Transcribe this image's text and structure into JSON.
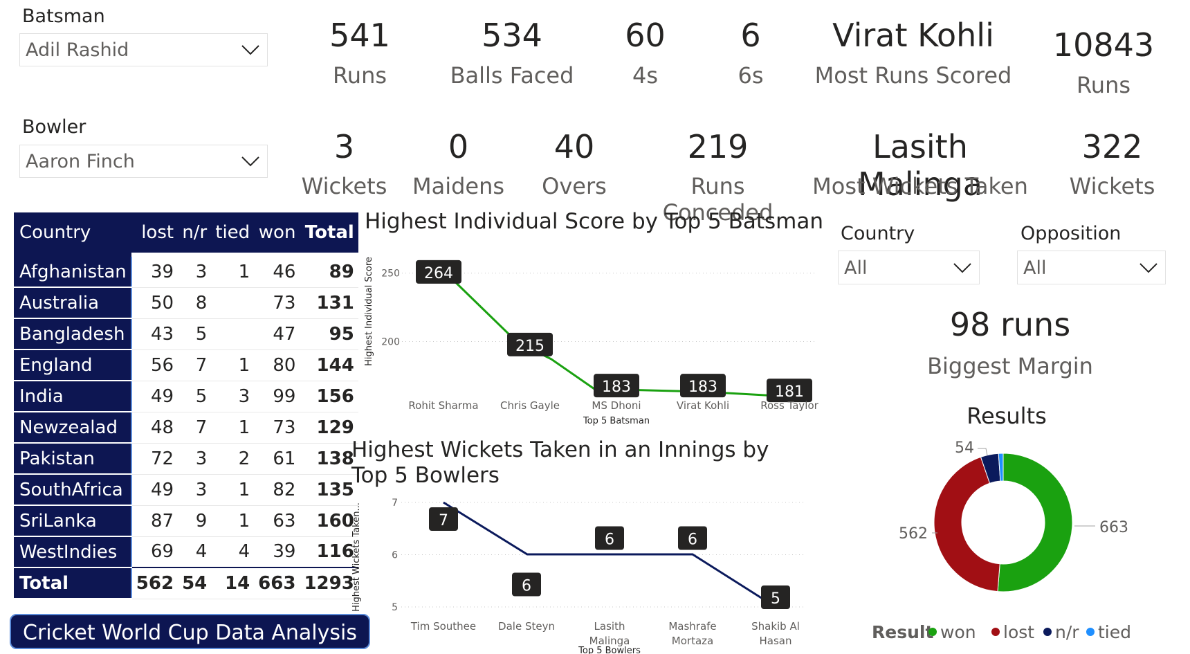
{
  "slicers": {
    "batsman": {
      "label": "Batsman",
      "value": "Adil Rashid"
    },
    "bowler": {
      "label": "Bowler",
      "value": "Aaron Finch"
    },
    "country": {
      "label": "Country",
      "value": "All"
    },
    "opposition": {
      "label": "Opposition",
      "value": "All"
    }
  },
  "batting_kpis": [
    {
      "value": "541",
      "label": "Runs"
    },
    {
      "value": "534",
      "label": "Balls Faced"
    },
    {
      "value": "60",
      "label": "4s"
    },
    {
      "value": "6",
      "label": "6s"
    },
    {
      "value": "Virat Kohli",
      "label": "Most Runs Scored"
    },
    {
      "value": "10843",
      "label": "Runs"
    }
  ],
  "bowling_kpis": [
    {
      "value": "3",
      "label": "Wickets"
    },
    {
      "value": "0",
      "label": "Maidens"
    },
    {
      "value": "40",
      "label": "Overs"
    },
    {
      "value": "219",
      "label": "Runs Conceded"
    },
    {
      "value": "Lasith Malinga",
      "label": "Most Wickets Taken"
    },
    {
      "value": "322",
      "label": "Wickets"
    }
  ],
  "results_table": {
    "headers": [
      "Country",
      "lost",
      "n/r",
      "tied",
      "won",
      "Total"
    ],
    "rows": [
      [
        "Afghanistan",
        "39",
        "3",
        "1",
        "46",
        "89"
      ],
      [
        "Australia",
        "50",
        "8",
        "",
        "73",
        "131"
      ],
      [
        "Bangladesh",
        "43",
        "5",
        "",
        "47",
        "95"
      ],
      [
        "England",
        "56",
        "7",
        "1",
        "80",
        "144"
      ],
      [
        "India",
        "49",
        "5",
        "3",
        "99",
        "156"
      ],
      [
        "Newzealad",
        "48",
        "7",
        "1",
        "73",
        "129"
      ],
      [
        "Pakistan",
        "72",
        "3",
        "2",
        "61",
        "138"
      ],
      [
        "SouthAfrica",
        "49",
        "3",
        "1",
        "82",
        "135"
      ],
      [
        "SriLanka",
        "87",
        "9",
        "1",
        "63",
        "160"
      ],
      [
        "WestIndies",
        "69",
        "4",
        "4",
        "39",
        "116"
      ]
    ],
    "total": [
      "Total",
      "562",
      "54",
      "14",
      "663",
      "1293"
    ]
  },
  "margin": {
    "value": "98 runs",
    "label": "Biggest Margin"
  },
  "app_button": {
    "label": "Cricket World Cup Data Analysis"
  },
  "colors": {
    "navy": "#0d1652",
    "green": "#1aa110",
    "red": "#a10f14",
    "darknavy": "#0b1a5c",
    "blue": "#1f8fff"
  },
  "chart_data": [
    {
      "type": "line",
      "title": "Highest Individual Score by Top 5 Batsman",
      "xlabel": "Top 5 Batsman",
      "ylabel": "Highest Individual Score",
      "categories": [
        "Rohit Sharma",
        "Chris Gayle",
        "MS Dhoni",
        "Virat Kohli",
        "Ross Taylor"
      ],
      "values": [
        264,
        215,
        183,
        183,
        181
      ],
      "data_labels": [
        "264",
        "215",
        "183",
        "183",
        "181"
      ],
      "y_ticks": [
        "200",
        "250"
      ],
      "ylim": [
        176,
        268
      ],
      "color": "#1aa110"
    },
    {
      "type": "line",
      "title": "Highest Wickets Taken in an Innings by Top 5 Bowlers",
      "xlabel": "Top 5 Bowlers",
      "ylabel": "Highest Wickets Taken...",
      "categories": [
        "Tim Southee",
        "Dale Steyn",
        "Lasith Malinga",
        "Mashrafe Mortaza",
        "Shakib Al Hasan"
      ],
      "values": [
        7,
        6,
        6,
        6,
        5
      ],
      "data_labels": [
        "7",
        "6",
        "6",
        "6",
        "5"
      ],
      "y_ticks": [
        "5",
        "6",
        "7"
      ],
      "ylim": [
        5,
        7
      ],
      "color": "#0b1a5c"
    },
    {
      "type": "pie",
      "title": "Results",
      "legend_title": "Result",
      "legend_position": "bottom",
      "slices": [
        {
          "name": "won",
          "value": 663,
          "label": "663",
          "color": "#1aa110"
        },
        {
          "name": "lost",
          "value": 562,
          "label": "562",
          "color": "#a10f14"
        },
        {
          "name": "n/r",
          "value": 54,
          "label": "54",
          "color": "#0b1a5c"
        },
        {
          "name": "tied",
          "value": 14,
          "label": "",
          "color": "#1f8fff"
        }
      ]
    }
  ]
}
